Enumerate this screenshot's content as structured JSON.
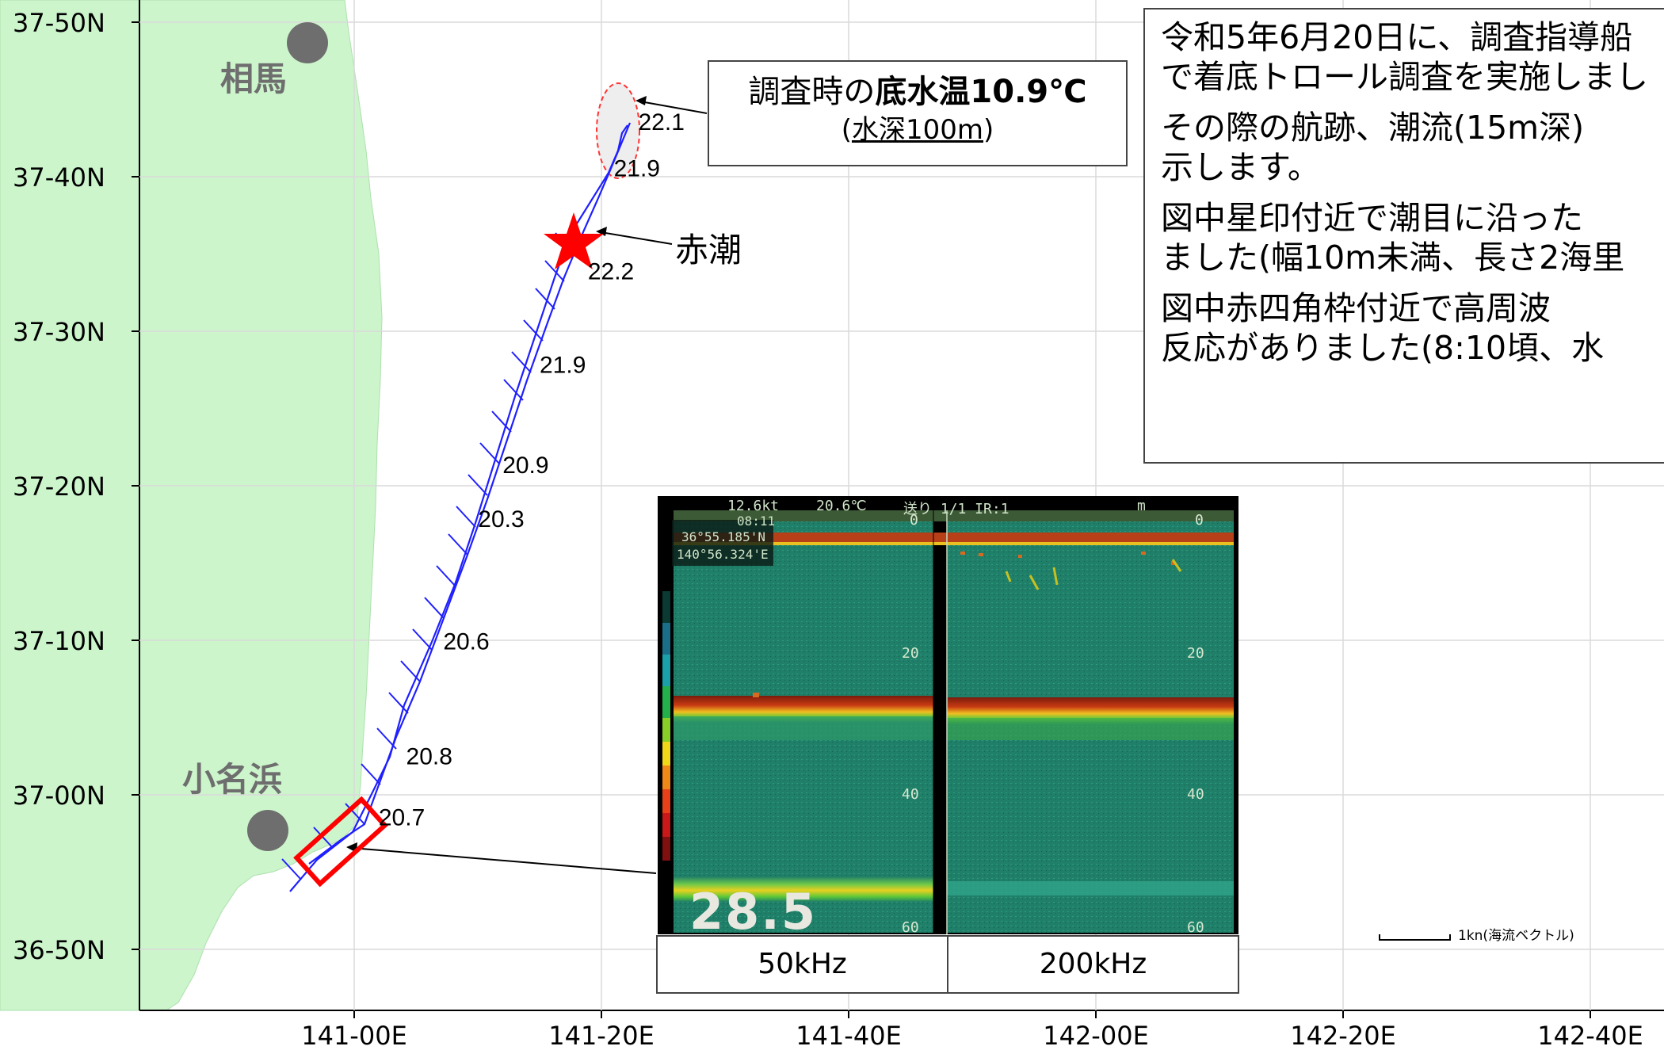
{
  "map": {
    "lat_labels": [
      "37-50N",
      "37-40N",
      "37-30N",
      "37-20N",
      "37-10N",
      "37-00N",
      "36-50N"
    ],
    "lon_labels": [
      "141-00E",
      "141-20E",
      "141-40E",
      "142-00E",
      "142-20E",
      "142-40E"
    ],
    "places": [
      {
        "name": "相馬",
        "lon": 140.962,
        "lat": 37.82
      },
      {
        "name": "小名浜",
        "lon": 140.892,
        "lat": 36.947
      }
    ],
    "temperature_labels": [
      {
        "value": "22.1",
        "lon": 141.383,
        "lat": 37.717
      },
      {
        "value": "21.9",
        "lon": 141.35,
        "lat": 37.667
      },
      {
        "value": "22.2",
        "lon": 141.315,
        "lat": 37.556
      },
      {
        "value": "21.9",
        "lon": 141.25,
        "lat": 37.455
      },
      {
        "value": "20.9",
        "lon": 141.2,
        "lat": 37.347
      },
      {
        "value": "20.3",
        "lon": 141.167,
        "lat": 37.289
      },
      {
        "value": "20.6",
        "lon": 141.12,
        "lat": 37.157
      },
      {
        "value": "20.8",
        "lon": 141.07,
        "lat": 37.033
      },
      {
        "value": "20.7",
        "lon": 141.033,
        "lat": 36.967
      }
    ],
    "scale_label": "1kn(海流ベクトル)",
    "land_color": "#ccf5cc",
    "track_color": "#1f1fff",
    "marker_color": "#ff0000",
    "city_marker_color": "#6e6e6e"
  },
  "info_box": {
    "lines": [
      "令和5年6月20日に、調査指導船",
      "で着底トロール調査を実施しまし",
      "その際の航跡、潮流(15m深)",
      "示します。",
      "図中星印付近で潮目に沿った",
      "ました(幅10m未満、長さ2海里",
      "図中赤四角枠付近で高周波",
      "反応がありました(8:10頃、水"
    ]
  },
  "callout": {
    "line1_prefix": "調査時の",
    "line1_bold": "底水温10.9℃",
    "line2_open": "(",
    "line2_underlined": "水深100m",
    "line2_close": ")"
  },
  "red_tide_label": "赤潮",
  "sounder": {
    "header_speed": "12.6kt",
    "header_temp": "20.6℃",
    "header_mode": "送り 1/1 IR:1",
    "header_unit": "m",
    "time": "08:11",
    "lat": "36°55.185'N",
    "lon": "140°56.324'E",
    "depth_value": "28.5",
    "left_ticks": [
      "0",
      "20",
      "40",
      "60"
    ],
    "right_ticks": [
      "0",
      "20",
      "40",
      "60"
    ],
    "freq_left": "50kHz",
    "freq_right": "200kHz"
  }
}
